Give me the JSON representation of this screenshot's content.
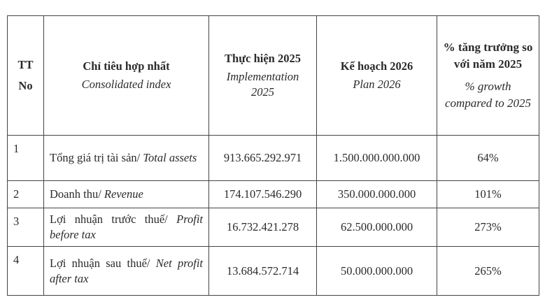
{
  "table": {
    "headers": [
      {
        "vi": "TT",
        "en": "No"
      },
      {
        "vi": "Chỉ tiêu hợp nhất",
        "en": "Consolidated index"
      },
      {
        "vi": "Thực hiện 2025",
        "en": "Implementation 2025"
      },
      {
        "vi": "Kế hoạch 2026",
        "en": "Plan 2026"
      },
      {
        "vi": "% tăng trưởng so với năm 2025",
        "en": "% growth compared to 2025"
      }
    ],
    "rows": [
      {
        "no": "1",
        "vi": "Tổng giá trị tài sản/",
        "en": "Total assets",
        "actual_2025": "913.665.292.971",
        "plan_2026": "1.500.000.000.000",
        "growth": "64%"
      },
      {
        "no": "2",
        "vi": "Doanh thu/",
        "en": "Revenue",
        "actual_2025": "174.107.546.290",
        "plan_2026": "350.000.000.000",
        "growth": "101%"
      },
      {
        "no": "3",
        "vi": "Lợi nhuận trước thuế/",
        "en": "Profit before tax",
        "actual_2025": "16.732.421.278",
        "plan_2026": "62.500.000.000",
        "growth": "273%"
      },
      {
        "no": "4",
        "vi": "Lợi nhuận sau thuế/",
        "en": "Net profit after tax",
        "actual_2025": "13.684.572.714",
        "plan_2026": "50.000.000.000",
        "growth": "265%"
      }
    ]
  }
}
